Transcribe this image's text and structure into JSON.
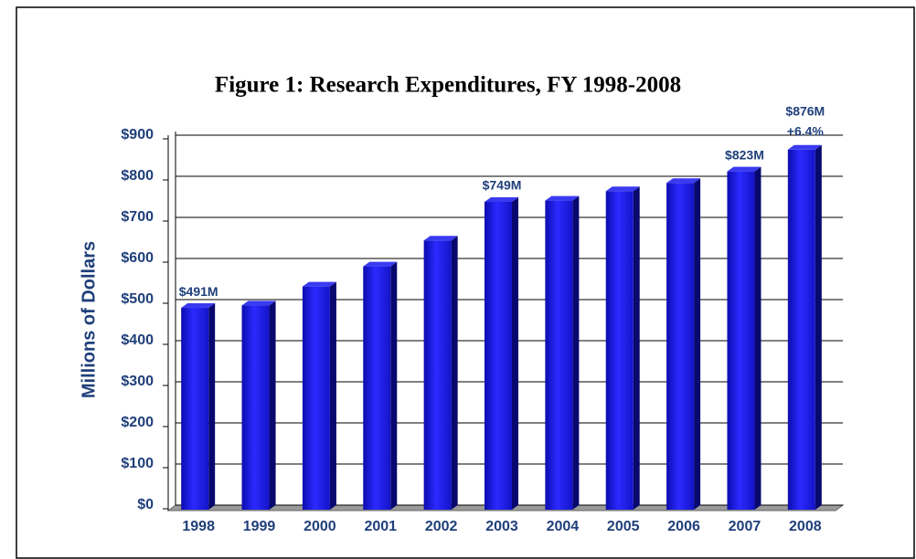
{
  "chart_data": {
    "type": "bar",
    "title": "Figure 1: Research Expenditures, FY 1998-2008",
    "y_label": "Millions of Dollars",
    "categories": [
      "1998",
      "1999",
      "2000",
      "2001",
      "2002",
      "2003",
      "2004",
      "2005",
      "2006",
      "2007",
      "2008"
    ],
    "values": [
      491,
      497,
      543,
      592,
      655,
      749,
      752,
      775,
      795,
      823,
      876
    ],
    "value_labels": [
      "$491M",
      null,
      null,
      null,
      null,
      "$749M",
      null,
      null,
      null,
      "$823M",
      "$876M"
    ],
    "annotation": "+6.4%",
    "color": "#1a1ae0",
    "ylim": [
      0,
      900
    ],
    "yticks": [
      {
        "value": 0,
        "label": "$0"
      },
      {
        "value": 100,
        "label": "$100"
      },
      {
        "value": 200,
        "label": "$200"
      },
      {
        "value": 300,
        "label": "$300"
      },
      {
        "value": 400,
        "label": "$400"
      },
      {
        "value": 500,
        "label": "$500"
      },
      {
        "value": 600,
        "label": "$600"
      },
      {
        "value": 700,
        "label": "$700"
      },
      {
        "value": 800,
        "label": "$800"
      },
      {
        "value": 900,
        "label": "$900"
      }
    ],
    "grid": true
  }
}
